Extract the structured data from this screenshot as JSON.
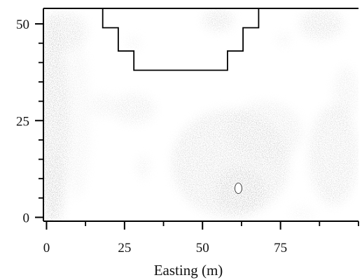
{
  "chart_data": {
    "type": "heatmap",
    "title": "",
    "xlabel": "Easting (m)",
    "ylabel": "",
    "xlim": [
      -1,
      100
    ],
    "ylim": [
      -1,
      54
    ],
    "x_ticks": [
      0,
      25,
      50,
      75
    ],
    "y_ticks": [
      0,
      25,
      50
    ],
    "x_minor_ticks": [
      12.5,
      37.5,
      62.5,
      87.5,
      100
    ],
    "y_minor_ticks": [
      5,
      10,
      15,
      20,
      30,
      35,
      40,
      45
    ],
    "grid": false,
    "legend": "none",
    "colormap": [
      "#ffffff",
      "#1a1a1a"
    ],
    "outline_polygon": [
      [
        18,
        54
      ],
      [
        18,
        49
      ],
      [
        23,
        49
      ],
      [
        23,
        43
      ],
      [
        28,
        43
      ],
      [
        28,
        38
      ],
      [
        58,
        38
      ],
      [
        58,
        43
      ],
      [
        63,
        43
      ],
      [
        63,
        49
      ],
      [
        68,
        49
      ],
      [
        68,
        54
      ]
    ],
    "marker": {
      "x": 61.5,
      "y": 7.5,
      "fill": "#ffffff"
    },
    "density_regions": [
      {
        "x": 2,
        "y": 25,
        "rx": 5,
        "ry": 28,
        "intensity": 0.7
      },
      {
        "x": 6,
        "y": 48,
        "rx": 7,
        "ry": 5,
        "intensity": 0.55
      },
      {
        "x": 2,
        "y": 8,
        "rx": 4,
        "ry": 9,
        "intensity": 0.55
      },
      {
        "x": 10,
        "y": 25,
        "rx": 4,
        "ry": 20,
        "intensity": 0.25
      },
      {
        "x": 59,
        "y": 14,
        "rx": 19,
        "ry": 14,
        "intensity": 0.55
      },
      {
        "x": 62,
        "y": 7,
        "rx": 8,
        "ry": 6,
        "intensity": 0.9
      },
      {
        "x": 70,
        "y": 22,
        "rx": 12,
        "ry": 8,
        "intensity": 0.4
      },
      {
        "x": 92,
        "y": 16,
        "rx": 8,
        "ry": 13,
        "intensity": 0.5
      },
      {
        "x": 96,
        "y": 32,
        "rx": 4,
        "ry": 7,
        "intensity": 0.35
      },
      {
        "x": 55,
        "y": 51,
        "rx": 5,
        "ry": 3,
        "intensity": 0.55
      },
      {
        "x": 88,
        "y": 50,
        "rx": 7,
        "ry": 4,
        "intensity": 0.55
      },
      {
        "x": 28,
        "y": 28,
        "rx": 7,
        "ry": 4,
        "intensity": 0.4
      },
      {
        "x": 18,
        "y": 29,
        "rx": 4,
        "ry": 3,
        "intensity": 0.3
      },
      {
        "x": 31,
        "y": 13,
        "rx": 2,
        "ry": 3,
        "intensity": 0.35
      },
      {
        "x": 28,
        "y": 45,
        "rx": 2,
        "ry": 2,
        "intensity": 0.3
      },
      {
        "x": 76,
        "y": 46,
        "rx": 2,
        "ry": 1.5,
        "intensity": 0.35
      },
      {
        "x": 82,
        "y": 1,
        "rx": 4,
        "ry": 2,
        "intensity": 0.2
      }
    ]
  }
}
